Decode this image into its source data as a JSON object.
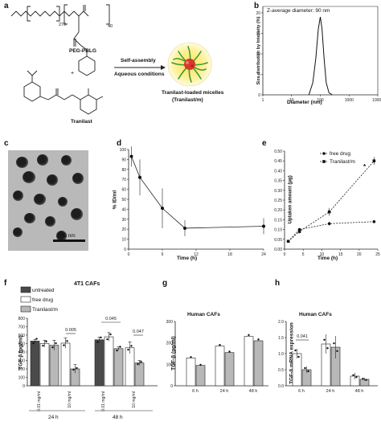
{
  "panels": [
    "a",
    "b",
    "c",
    "d",
    "e",
    "f",
    "g",
    "h"
  ],
  "a": {
    "polymer_label": "PEG-PBLG",
    "sub_270": "270",
    "sub_40": "40",
    "plus": "+",
    "drug_label": "Tranilast",
    "arrow_top": "Self-assembly",
    "arrow_bottom": "Aqueous conditions",
    "micelle_label_1": "Tranilast-loaded micelles",
    "micelle_label_2": "(Tranilast/m)"
  },
  "b": {
    "annotation": "Z-average diameter: 90 nm",
    "xlabel": "Diameter (nm)",
    "ylabel": "Size distribution by Intensity (%)",
    "ytick_labels": [
      "0",
      "5",
      "10",
      "15",
      "20"
    ],
    "xtick_labels": [
      "1",
      "10",
      "100",
      "1000",
      "10000"
    ]
  },
  "c": {
    "scale_label": "200 nm"
  },
  "d": {
    "ylabel": "% ID/ml",
    "xlabel": "Time (h)",
    "ytick_labels": [
      "0",
      "10",
      "20",
      "30",
      "40",
      "50",
      "60",
      "70",
      "80",
      "90",
      "100"
    ],
    "xtick_labels": [
      "0",
      "6",
      "12",
      "18",
      "24"
    ]
  },
  "e": {
    "ylabel": "Uptaken amount (μg)",
    "xlabel": "Time (h)",
    "legend": [
      "free drug",
      "Tranilast/m"
    ],
    "ytick_labels": [
      "0.00",
      "0.05",
      "0.10",
      "0.15",
      "0.20",
      "0.25",
      "0.30",
      "0.35",
      "0.40",
      "0.45",
      "0.50"
    ],
    "xtick_labels": [
      "0",
      "5",
      "10",
      "15",
      "20",
      "25"
    ],
    "asterisk": "*"
  },
  "f": {
    "title": "4T1 CAFs",
    "legend": [
      "untreated",
      "free drug",
      "Tranilast/m"
    ],
    "ylabel": "TGF-β (pg/ml)",
    "ytick_labels": [
      "0",
      "100",
      "200",
      "300",
      "400",
      "500",
      "600",
      "700",
      "800"
    ],
    "dose_labels": [
      "0.01 mg/ml",
      "10 mg/ml",
      "0.01 mg/ml",
      "10 mg/ml"
    ],
    "time_labels": [
      "24 h",
      "48 h"
    ],
    "p_values": [
      "0.005",
      "0.045",
      "0.047"
    ]
  },
  "g": {
    "title": "Human CAFs",
    "ylabel": "TGF-β (pg/ml)",
    "ytick_labels": [
      "0",
      "100",
      "200",
      "300"
    ],
    "xtick_labels": [
      "6 h",
      "24 h",
      "48 h"
    ]
  },
  "h": {
    "title": "Human CAFs",
    "ylabel": "TGF-β mRNA expression",
    "ytick_labels": [
      "0.0",
      "0.5",
      "1.0",
      "1.5",
      "2.0"
    ],
    "xtick_labels": [
      "6 h",
      "24 h",
      "48 h"
    ],
    "p_value": "0.041"
  },
  "chart_data": [
    {
      "panel": "b",
      "type": "line",
      "x": [
        40,
        55,
        70,
        85,
        100,
        115,
        135,
        160,
        200,
        260
      ],
      "values": [
        0,
        3,
        9,
        16,
        19,
        16,
        9,
        3,
        0.5,
        0
      ],
      "xlabel": "Diameter (nm)",
      "ylabel": "Size distribution by Intensity (%)",
      "xscale": "log",
      "xlim": [
        1,
        10000
      ],
      "ylim": [
        0,
        20
      ]
    },
    {
      "panel": "d",
      "type": "line",
      "x": [
        0.5,
        2,
        6,
        10,
        24
      ],
      "values": [
        93,
        72,
        41,
        21,
        23
      ],
      "errors": [
        10,
        18,
        20,
        8,
        8
      ],
      "xlabel": "Time (h)",
      "ylabel": "% ID/ml",
      "xlim": [
        0,
        24
      ],
      "ylim": [
        0,
        100
      ]
    },
    {
      "panel": "e",
      "type": "line",
      "x": [
        1,
        4,
        12,
        24
      ],
      "series": [
        {
          "name": "free drug",
          "values": [
            0.04,
            0.1,
            0.13,
            0.14
          ]
        },
        {
          "name": "Tranilast/m",
          "values": [
            0.04,
            0.09,
            0.19,
            0.45
          ]
        }
      ],
      "errors": [
        [
          0.005,
          0.005,
          0.01,
          0.005
        ],
        [
          0.005,
          0.01,
          0.02,
          0.02
        ]
      ],
      "xlabel": "Time (h)",
      "ylabel": "Uptaken amount (μg)",
      "xlim": [
        0,
        25
      ],
      "ylim": [
        0,
        0.5
      ]
    },
    {
      "panel": "f",
      "type": "bar",
      "categories": [
        "24 h 0.01 mg/ml",
        "24 h 10 mg/ml",
        "48 h 0.01 mg/ml",
        "48 h 10 mg/ml"
      ],
      "series": [
        {
          "name": "untreated",
          "values": [
            530,
            null,
            545,
            null
          ]
        },
        {
          "name": "free drug",
          "values": [
            500,
            505,
            580,
            450
          ]
        },
        {
          "name": "Tranilast/m",
          "values": [
            480,
            200,
            440,
            270
          ]
        }
      ],
      "errors": [
        [
          20,
          null,
          30,
          null
        ],
        [
          40,
          60,
          50,
          70
        ],
        [
          60,
          50,
          20,
          30
        ]
      ],
      "ylabel": "TGF-β (pg/ml)",
      "ylim": [
        0,
        800
      ]
    },
    {
      "panel": "g",
      "type": "bar",
      "categories": [
        "6 h",
        "24 h",
        "48 h"
      ],
      "series": [
        {
          "values": [
            130,
            185,
            230
          ]
        },
        {
          "values": [
            95,
            155,
            210
          ]
        }
      ],
      "ylabel": "TGF-β (pg/ml)",
      "ylim": [
        0,
        300
      ]
    },
    {
      "panel": "h",
      "type": "bar",
      "categories": [
        "6 h",
        "24 h",
        "48 h"
      ],
      "series": [
        {
          "values": [
            1.0,
            1.3,
            0.3
          ]
        },
        {
          "values": [
            0.5,
            1.2,
            0.2
          ]
        }
      ],
      "errors": [
        [
          0.15,
          0.3,
          0.1
        ],
        [
          0.1,
          0.35,
          0.05
        ]
      ],
      "ylabel": "TGF-β mRNA expression",
      "ylim": [
        0,
        2.0
      ]
    }
  ]
}
